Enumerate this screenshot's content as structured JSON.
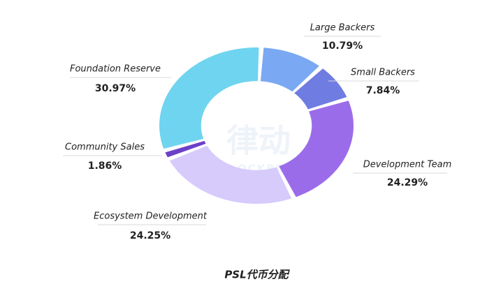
{
  "chart_data": {
    "type": "donut",
    "title": "PSL代币分配",
    "categories": [
      "Large Backers",
      "Small Backers",
      "Development Team",
      "Ecosystem Development",
      "Community Sales",
      "Foundation Reserve"
    ],
    "values": [
      10.79,
      7.84,
      24.29,
      24.25,
      1.86,
      30.97
    ],
    "value_labels": [
      "10.79%",
      "7.84%",
      "24.29%",
      "24.25%",
      "1.86%",
      "30.97%"
    ],
    "colors": [
      "#7aa8f2",
      "#6f7ce2",
      "#9b6cea",
      "#d6cbfb",
      "#6c40c9",
      "#6fd4ef"
    ],
    "watermark": [
      "律动",
      "BLOCKBEATS"
    ]
  }
}
